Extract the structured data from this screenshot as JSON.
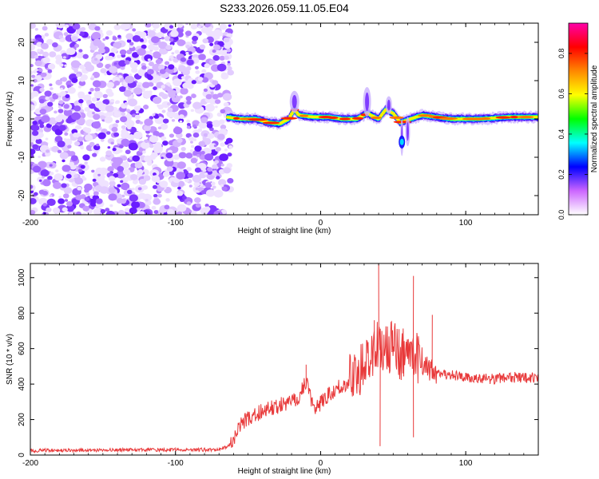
{
  "title": "S233.2026.059.11.05.E04",
  "chart_data": [
    {
      "type": "heatmap",
      "xlabel": "Height of straight line (km)",
      "ylabel": "Frequency (Hz)",
      "xlim": [
        -200,
        150
      ],
      "ylim": [
        -25,
        25
      ],
      "xticks": [
        -200,
        -100,
        0,
        100
      ],
      "yticks": [
        -20,
        -10,
        0,
        10,
        20
      ],
      "noise_region_x": [
        -200,
        -62
      ],
      "signal_track": [
        {
          "x": -65,
          "y": 0.5
        },
        {
          "x": -55,
          "y": 0.0
        },
        {
          "x": -45,
          "y": 0.0
        },
        {
          "x": -35,
          "y": -1.0
        },
        {
          "x": -28,
          "y": -1.2
        },
        {
          "x": -22,
          "y": 0.0
        },
        {
          "x": -18,
          "y": 2.5
        },
        {
          "x": -15,
          "y": 1.0
        },
        {
          "x": -5,
          "y": 0.5
        },
        {
          "x": 5,
          "y": 0.5
        },
        {
          "x": 15,
          "y": 0.0
        },
        {
          "x": 25,
          "y": 0.0
        },
        {
          "x": 32,
          "y": 1.5
        },
        {
          "x": 40,
          "y": 0.0
        },
        {
          "x": 45,
          "y": 2.5
        },
        {
          "x": 50,
          "y": 1.5
        },
        {
          "x": 55,
          "y": -1.0
        },
        {
          "x": 62,
          "y": 0.0
        },
        {
          "x": 70,
          "y": 1.0
        },
        {
          "x": 80,
          "y": 0.5
        },
        {
          "x": 90,
          "y": 0.0
        },
        {
          "x": 110,
          "y": 0.0
        },
        {
          "x": 130,
          "y": 0.5
        },
        {
          "x": 150,
          "y": 0.5
        }
      ],
      "colorbar": {
        "label": "Normalized spectral amplitude",
        "range": [
          0,
          0.95
        ],
        "ticks": [
          0.0,
          0.2,
          0.4,
          0.6,
          0.8
        ],
        "tick_labels": [
          "0.0",
          "0.2",
          "0.4",
          "0.6",
          "0.8"
        ],
        "colors": [
          "#ffffff",
          "#cc66ff",
          "#0000ff",
          "#00ffff",
          "#00ff00",
          "#ffff00",
          "#ff8800",
          "#ff0000",
          "#ff00aa"
        ]
      }
    },
    {
      "type": "line",
      "xlabel": "Height of straight line (km)",
      "ylabel": "SNR (10 * v/v)",
      "xlim": [
        -200,
        150
      ],
      "ylim": [
        0,
        1080
      ],
      "xticks": [
        -200,
        -100,
        0,
        100
      ],
      "yticks": [
        0,
        200,
        400,
        600,
        800,
        1000
      ],
      "color": "#e8393a",
      "series": [
        {
          "x": [
            -200,
            -150,
            -100,
            -70,
            -62,
            -55,
            -45,
            -35,
            -25,
            -15,
            -10,
            -5,
            0,
            5,
            10,
            15,
            20,
            25,
            30,
            35,
            40,
            45,
            50,
            55,
            60,
            65,
            70,
            75,
            80,
            90,
            100,
            110,
            120,
            130,
            140,
            150
          ],
          "values": [
            25,
            28,
            30,
            30,
            60,
            180,
            230,
            260,
            290,
            320,
            420,
            260,
            290,
            340,
            370,
            390,
            420,
            460,
            500,
            550,
            650,
            580,
            640,
            560,
            610,
            560,
            500,
            480,
            470,
            450,
            440,
            430,
            430,
            440,
            435,
            440
          ]
        }
      ],
      "spikes": [
        {
          "x": 40,
          "y": 1080
        },
        {
          "x": 64,
          "y": 1010
        },
        {
          "x": 37,
          "y": 760
        },
        {
          "x": 77,
          "y": 790
        },
        {
          "x": 54,
          "y": 710
        },
        {
          "x": -10,
          "y": 510
        },
        {
          "x": 41,
          "y": 50
        },
        {
          "x": 64,
          "y": 100
        }
      ]
    }
  ]
}
